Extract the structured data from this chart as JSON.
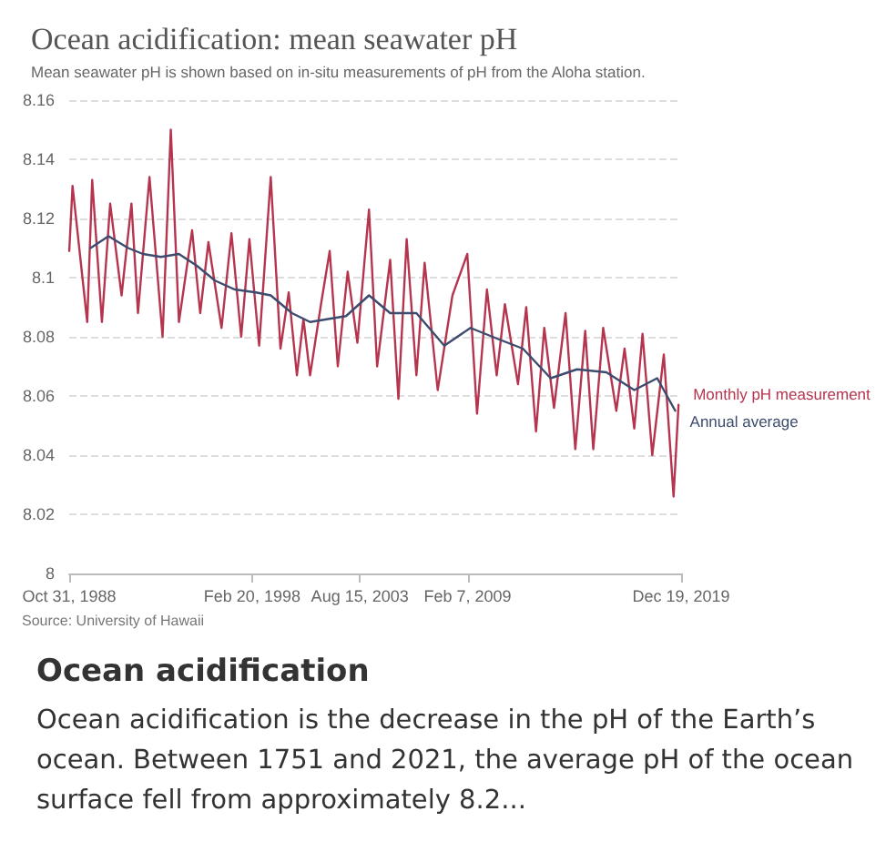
{
  "chart_data": {
    "type": "line",
    "title": "Ocean acidification: mean seawater pH",
    "subtitle": "Mean seawater pH is shown based on in-situ measurements of pH from the Aloha station.",
    "annotations": [
      "Source: University of Hawaii",
      "Ocean acidification",
      "Ocean acidification is the decrease in the pH of the Earth’s ocean. Between 1751 and 2021, the average pH of the ocean surface fell from approximately 8.2..."
    ],
    "xlim": [
      "1988-10-31",
      "2019-12-19"
    ],
    "xticks": [
      {
        "value": "1988-10-31",
        "label": "Oct 31, 1988"
      },
      {
        "value": "1998-02-20",
        "label": "Feb 20, 1998"
      },
      {
        "value": "2003-08-15",
        "label": "Aug 15, 2003"
      },
      {
        "value": "2009-02-07",
        "label": "Feb 7, 2009"
      },
      {
        "value": "2019-12-19",
        "label": "Dec 19, 2019"
      }
    ],
    "ylim": [
      8,
      8.16
    ],
    "yticks": [
      8,
      8.02,
      8.04,
      8.06,
      8.08,
      8.1,
      8.12,
      8.14,
      8.16
    ],
    "grid": "y",
    "marker": "none",
    "line_style": "solid",
    "series": [
      {
        "name": "Monthly pH measurement",
        "color": "#b5354e",
        "x": [
          "1988-11",
          "1989-01",
          "1989-10",
          "1990-01",
          "1990-07",
          "1990-12",
          "1991-07",
          "1992-01",
          "1992-05",
          "1992-12",
          "1993-08",
          "1994-01",
          "1994-06",
          "1995-02",
          "1995-07",
          "1995-12",
          "1996-08",
          "1997-02",
          "1997-08",
          "1998-01",
          "1998-07",
          "1999-02",
          "1999-08",
          "2000-01",
          "2000-06",
          "2000-10",
          "2001-02",
          "2001-09",
          "2002-02",
          "2002-07",
          "2003-01",
          "2003-07",
          "2004-02",
          "2004-07",
          "2005-03",
          "2005-08",
          "2006-01",
          "2006-07",
          "2006-12",
          "2007-08",
          "2008-05",
          "2009-02",
          "2009-08",
          "2010-02",
          "2010-08",
          "2011-01",
          "2011-09",
          "2012-02",
          "2012-08",
          "2013-01",
          "2013-07",
          "2014-02",
          "2014-08",
          "2015-02",
          "2015-07",
          "2016-01",
          "2016-09",
          "2017-02",
          "2017-08",
          "2018-01",
          "2018-07",
          "2019-02",
          "2019-08",
          "2019-11"
        ],
        "values": [
          8.109,
          8.131,
          8.085,
          8.133,
          8.085,
          8.125,
          8.094,
          8.125,
          8.088,
          8.134,
          8.08,
          8.15,
          8.085,
          8.116,
          8.088,
          8.112,
          8.083,
          8.115,
          8.08,
          8.113,
          8.077,
          8.134,
          8.076,
          8.095,
          8.067,
          8.086,
          8.067,
          8.092,
          8.109,
          8.07,
          8.102,
          8.078,
          8.123,
          8.07,
          8.106,
          8.059,
          8.113,
          8.067,
          8.105,
          8.062,
          8.094,
          8.108,
          8.054,
          8.096,
          8.067,
          8.091,
          8.064,
          8.09,
          8.048,
          8.083,
          8.056,
          8.088,
          8.042,
          8.082,
          8.042,
          8.083,
          8.055,
          8.076,
          8.049,
          8.081,
          8.04,
          8.074,
          8.026,
          8.057
        ]
      },
      {
        "name": "Annual average",
        "color": "#3d4c6e",
        "x": [
          "1989-12",
          "1990-11",
          "1991-11",
          "1992-08",
          "1993-07",
          "1994-06",
          "1995-05",
          "1996-04",
          "1997-04",
          "1998-05",
          "1999-02",
          "2000-03",
          "2001-02",
          "2002-01",
          "2002-12",
          "2004-02",
          "2005-03",
          "2006-07",
          "2007-12",
          "2009-04",
          "2010-10",
          "2011-12",
          "2013-05",
          "2014-09",
          "2016-03",
          "2017-08",
          "2018-10",
          "2019-09"
        ],
        "values": [
          8.11,
          8.114,
          8.11,
          8.108,
          8.107,
          8.108,
          8.104,
          8.099,
          8.096,
          8.095,
          8.094,
          8.088,
          8.085,
          8.086,
          8.087,
          8.094,
          8.088,
          8.088,
          8.077,
          8.083,
          8.079,
          8.076,
          8.066,
          8.069,
          8.068,
          8.062,
          8.066,
          8.055
        ]
      }
    ]
  }
}
